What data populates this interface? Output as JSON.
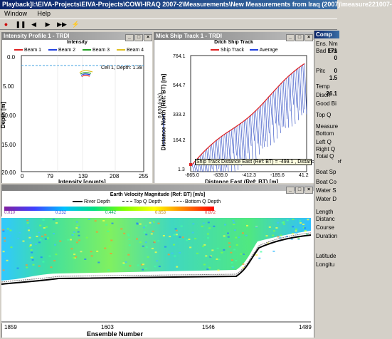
{
  "app": {
    "title": "Playback]I:\\EIVA-Projects\\EIVA-Projects\\COWI-IRAQ 2007-2\\Measurements\\New Measurements from Iraq (2007)\\measure221007-"
  },
  "menu": {
    "items": [
      "Window",
      "Help"
    ]
  },
  "intensity": {
    "window_title": "Intensity Profile 1 - TRDI",
    "plot_title": "Intensity",
    "legend": [
      "Beam 1",
      "Beam 2",
      "Beam 3",
      "Beam 4"
    ],
    "legend_colors": [
      "#e02020",
      "#2040e0",
      "#20a020",
      "#e0c020"
    ],
    "annotation": "Cell 1, Depth: 1.38",
    "xlabel": "Intensity [counts]",
    "ylabel": "Depth [m]",
    "xticks": [
      "0",
      "79",
      "139",
      "208",
      "255"
    ],
    "yticks": [
      "0.0",
      "5.00",
      "10.00",
      "15.00",
      "20.00"
    ],
    "ylabel_short": "Depth [m]"
  },
  "shiptrack": {
    "window_title": "Mick Ship Track 1 - TRDI",
    "plot_title": "Ditch Ship Track",
    "legend": [
      "Ship Track",
      "Average"
    ],
    "legend_colors": [
      "#e02020",
      "#2040e0"
    ],
    "velocity_label": "0.630 (m/s)",
    "xlabel": "Distance East (Ref: BT) [m]",
    "ylabel": "Distance North (Ref: BT) [m]",
    "xticks": [
      "-865.0",
      "-639.0",
      "-412.3",
      "-185.6",
      "41.2"
    ],
    "yticks": [
      "764.1",
      "544.7",
      "333.2",
      "164.2",
      "1.3"
    ],
    "tooltip": "Ship Track Distance East (Ref: BT) = -499.1 , Distance North (Ref"
  },
  "contour": {
    "plot_title": "Earth Velocity Magnitude (Ref: BT) [m/s]",
    "legend": [
      "River Depth",
      "Top Q Depth",
      "Bottom Q Depth"
    ],
    "colorbar_ticks": [
      "0.010",
      "0.232",
      "0.442",
      "0.653",
      "0.872"
    ],
    "xlabel": "Ensemble Number",
    "xticks": [
      "1859",
      "1603",
      "1546",
      "1489"
    ]
  },
  "properties": {
    "header": "Comp",
    "items": [
      {
        "label": "Ens. Nm",
        "value": "171"
      },
      {
        "label": "Bad Ens",
        "value": "0"
      },
      {
        "label": "",
        "value": "0"
      },
      {
        "label": "Pitc",
        "value": "1.5"
      },
      {
        "label": "Temp",
        "value": "26.1"
      },
      {
        "label": "Disch",
        "value": ""
      },
      {
        "label": "Good Bi",
        "value": ""
      },
      {
        "label": "Top Q",
        "value": ""
      },
      {
        "label": "Measure",
        "value": ""
      },
      {
        "label": "Bottom",
        "value": ""
      },
      {
        "label": "Left Q",
        "value": ""
      },
      {
        "label": "Right Q",
        "value": ""
      },
      {
        "label": "Total Q",
        "value": ""
      },
      {
        "label": "Boat Sp",
        "value": ""
      },
      {
        "label": "Boat Co",
        "value": ""
      },
      {
        "label": "Water S",
        "value": ""
      },
      {
        "label": "Water D",
        "value": ""
      },
      {
        "label": "Length",
        "value": ""
      },
      {
        "label": "Distanc",
        "value": ""
      },
      {
        "label": "Course",
        "value": ""
      },
      {
        "label": "Duration",
        "value": ""
      },
      {
        "label": "Latitude",
        "value": ""
      },
      {
        "label": "Longitu",
        "value": ""
      }
    ]
  }
}
